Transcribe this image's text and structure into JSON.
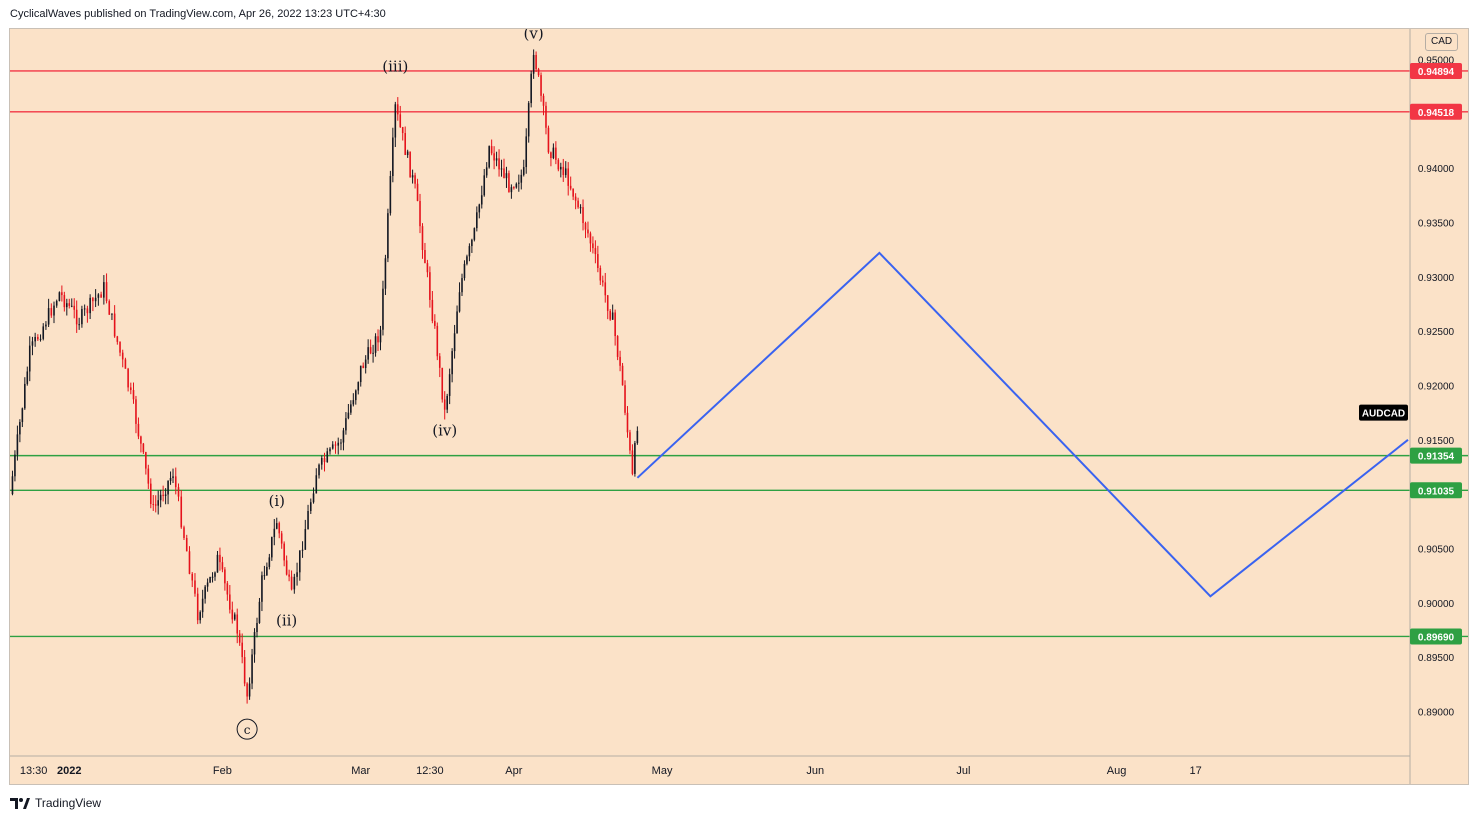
{
  "header": {
    "publish_text": "CyclicalWaves published on TradingView.com, Apr 26, 2022 13:23 UTC+4:30"
  },
  "footer": {
    "brand": "TradingView",
    "logo_icon": "tradingview-logo-icon"
  },
  "colors": {
    "background": "#fbe2c8",
    "resistance": "#f23645",
    "support": "#2ea043",
    "projection": "#3a63f0",
    "candle_up": "#131722",
    "candle_down": "#e5121b",
    "symbol_badge": "#000000"
  },
  "chart_data": {
    "type": "candlestick",
    "symbol": "AUDCAD",
    "currency": "CAD",
    "ylim": [
      0.8859,
      0.9528
    ],
    "y_ticks": [
      "0.95000",
      "0.94500",
      "0.94000",
      "0.93500",
      "0.93000",
      "0.92500",
      "0.92000",
      "0.91500",
      "0.91000",
      "0.90500",
      "0.90000",
      "0.89500",
      "0.89000"
    ],
    "x_ticks": [
      {
        "label": "13:30",
        "date": "2021-12-22"
      },
      {
        "label": "2022",
        "date": "2022-01-01"
      },
      {
        "label": "Feb",
        "date": "2022-02-01"
      },
      {
        "label": "Mar",
        "date": "2022-03-01"
      },
      {
        "label": "12:30",
        "date": "2022-03-15"
      },
      {
        "label": "Apr",
        "date": "2022-04-01"
      },
      {
        "label": "May",
        "date": "2022-05-01"
      },
      {
        "label": "Jun",
        "date": "2022-06-01"
      },
      {
        "label": "Jul",
        "date": "2022-07-01"
      },
      {
        "label": "Aug",
        "date": "2022-08-01"
      },
      {
        "label": "17",
        "date": "2022-08-17"
      }
    ],
    "price_path": [
      {
        "date": "2021-12-20",
        "price": 0.91
      },
      {
        "date": "2021-12-24",
        "price": 0.923
      },
      {
        "date": "2021-12-30",
        "price": 0.9285
      },
      {
        "date": "2022-01-03",
        "price": 0.926
      },
      {
        "date": "2022-01-08",
        "price": 0.929
      },
      {
        "date": "2022-01-14",
        "price": 0.918
      },
      {
        "date": "2022-01-18",
        "price": 0.9085
      },
      {
        "date": "2022-01-22",
        "price": 0.912
      },
      {
        "date": "2022-01-27",
        "price": 0.899
      },
      {
        "date": "2022-01-31",
        "price": 0.904
      },
      {
        "date": "2022-02-04",
        "price": 0.8975
      },
      {
        "date": "2022-02-06",
        "price": 0.8915
      },
      {
        "date": "2022-02-09",
        "price": 0.902
      },
      {
        "date": "2022-02-12",
        "price": 0.9075
      },
      {
        "date": "2022-02-15",
        "price": 0.9005
      },
      {
        "date": "2022-02-20",
        "price": 0.912
      },
      {
        "date": "2022-02-25",
        "price": 0.915
      },
      {
        "date": "2022-03-01",
        "price": 0.9215
      },
      {
        "date": "2022-03-05",
        "price": 0.925
      },
      {
        "date": "2022-03-08",
        "price": 0.9455
      },
      {
        "date": "2022-03-12",
        "price": 0.938
      },
      {
        "date": "2022-03-16",
        "price": 0.925
      },
      {
        "date": "2022-03-18",
        "price": 0.9175
      },
      {
        "date": "2022-03-21",
        "price": 0.929
      },
      {
        "date": "2022-03-24",
        "price": 0.934
      },
      {
        "date": "2022-03-27",
        "price": 0.942
      },
      {
        "date": "2022-03-31",
        "price": 0.9385
      },
      {
        "date": "2022-04-03",
        "price": 0.9395
      },
      {
        "date": "2022-04-05",
        "price": 0.951
      },
      {
        "date": "2022-04-08",
        "price": 0.942
      },
      {
        "date": "2022-04-12",
        "price": 0.939
      },
      {
        "date": "2022-04-16",
        "price": 0.934
      },
      {
        "date": "2022-04-19",
        "price": 0.929
      },
      {
        "date": "2022-04-21",
        "price": 0.926
      },
      {
        "date": "2022-04-23",
        "price": 0.92
      },
      {
        "date": "2022-04-25",
        "price": 0.9115
      },
      {
        "date": "2022-04-26",
        "price": 0.9165
      }
    ],
    "horizontal_levels": [
      {
        "price": 0.94894,
        "label": "0.94894",
        "kind": "resistance"
      },
      {
        "price": 0.94518,
        "label": "0.94518",
        "kind": "resistance"
      },
      {
        "price": 0.91354,
        "label": "0.91354",
        "kind": "support"
      },
      {
        "price": 0.91035,
        "label": "0.91035",
        "kind": "support"
      },
      {
        "price": 0.8969,
        "label": "0.89690",
        "kind": "support"
      }
    ],
    "projection_path": [
      {
        "date": "2022-04-26",
        "price": 0.9115
      },
      {
        "date": "2022-06-14",
        "price": 0.9322
      },
      {
        "date": "2022-08-20",
        "price": 0.9006
      },
      {
        "date": "2022-09-29",
        "price": 0.915
      }
    ],
    "wave_labels": [
      {
        "text": "c",
        "date": "2022-02-06",
        "price": 0.888,
        "circled": true
      },
      {
        "text": "(i)",
        "date": "2022-02-12",
        "price": 0.909
      },
      {
        "text": "(ii)",
        "date": "2022-02-14",
        "price": 0.898
      },
      {
        "text": "(iii)",
        "date": "2022-03-08",
        "price": 0.949
      },
      {
        "text": "(iv)",
        "date": "2022-03-18",
        "price": 0.9155
      },
      {
        "text": "(v)",
        "date": "2022-04-05",
        "price": 0.952
      }
    ],
    "last_price_badge": {
      "text": "AUDCAD",
      "price": 0.9175
    }
  }
}
